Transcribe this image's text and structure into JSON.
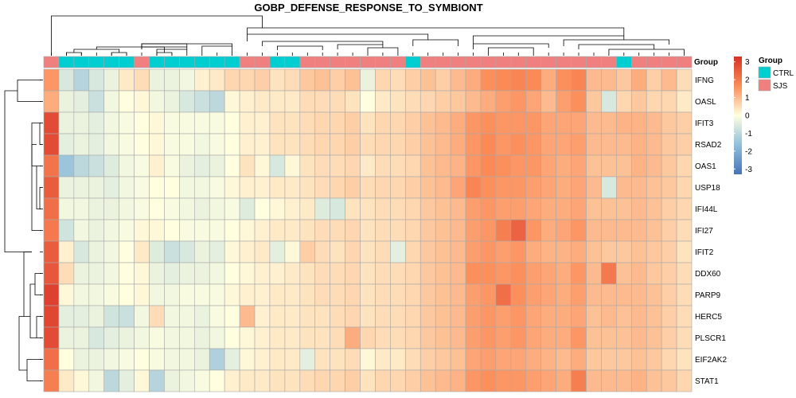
{
  "chart_data": {
    "type": "heatmap",
    "title": "GOBP_DEFENSE_RESPONSE_TO_SYMBIONT",
    "rows": [
      "IFNG",
      "OASL",
      "IFIT3",
      "RSAD2",
      "OAS1",
      "USP18",
      "IFI44L",
      "IFI27",
      "IFIT2",
      "DDX60",
      "PARP9",
      "HERC5",
      "PLSCR1",
      "EIF2AK2",
      "STAT1"
    ],
    "color_scale": {
      "ticks": [
        3,
        2,
        1,
        0,
        -1,
        -2,
        -3
      ],
      "range": [
        -3.3,
        3.3
      ],
      "low": "#4575B4",
      "mid": "#FFFFE0",
      "high": "#D73027"
    },
    "annotation": {
      "name": "Group",
      "legend_title": "Group",
      "levels": [
        {
          "label": "CTRL",
          "color": "#00CED1"
        },
        {
          "label": "SJS",
          "color": "#F08080"
        }
      ],
      "columns": [
        "SJS",
        "CTRL",
        "CTRL",
        "CTRL",
        "CTRL",
        "CTRL",
        "SJS",
        "CTRL",
        "CTRL",
        "CTRL",
        "CTRL",
        "CTRL",
        "CTRL",
        "SJS",
        "SJS",
        "CTRL",
        "CTRL",
        "SJS",
        "SJS",
        "SJS",
        "SJS",
        "SJS",
        "SJS",
        "SJS",
        "CTRL",
        "SJS",
        "SJS",
        "SJS",
        "SJS",
        "SJS",
        "SJS",
        "SJS",
        "SJS",
        "SJS",
        "SJS",
        "SJS",
        "SJS",
        "SJS",
        "CTRL",
        "SJS",
        "SJS",
        "SJS",
        "SJS"
      ]
    },
    "values": [
      [
        1.5,
        -0.6,
        -1.1,
        -0.6,
        -0.3,
        0.3,
        0.5,
        -0.3,
        -0.3,
        -0.2,
        0.2,
        0.3,
        0.6,
        0.6,
        0.7,
        0.4,
        0.5,
        0.8,
        0.9,
        0.7,
        0.9,
        -0.3,
        0.6,
        0.5,
        0.7,
        0.9,
        0.7,
        1.0,
        1.2,
        1.6,
        1.7,
        1.8,
        1.7,
        1.2,
        1.6,
        1.8,
        1.0,
        1.0,
        0.8,
        1.2,
        0.7,
        1.0,
        0.5
      ],
      [
        1.2,
        -0.3,
        -0.4,
        -0.8,
        -0.2,
        0.0,
        0.1,
        -0.2,
        -0.3,
        -0.6,
        -0.8,
        -1.0,
        0.1,
        0.2,
        0.3,
        0.3,
        0.3,
        0.5,
        0.5,
        0.5,
        0.4,
        0.0,
        0.3,
        0.4,
        0.5,
        0.6,
        0.7,
        0.8,
        1.0,
        1.2,
        1.4,
        1.5,
        1.3,
        1.0,
        1.4,
        1.6,
        0.8,
        -0.6,
        0.6,
        0.8,
        0.6,
        0.6,
        0.3
      ],
      [
        2.8,
        -0.3,
        -0.3,
        -0.4,
        -0.2,
        -0.1,
        0.0,
        0.1,
        -0.1,
        -0.1,
        -0.1,
        -0.1,
        0.0,
        0.2,
        0.2,
        0.4,
        0.4,
        0.5,
        0.6,
        0.6,
        0.7,
        0.4,
        0.6,
        0.6,
        0.7,
        0.9,
        1.0,
        1.2,
        1.5,
        1.6,
        1.5,
        1.5,
        1.5,
        1.3,
        1.3,
        1.3,
        1.0,
        1.0,
        1.1,
        1.1,
        1.0,
        0.8,
        0.7
      ],
      [
        2.8,
        -0.4,
        -0.3,
        -0.4,
        -0.2,
        -0.1,
        0.0,
        0.1,
        -0.1,
        -0.1,
        -0.2,
        -0.1,
        0.0,
        0.2,
        0.2,
        0.4,
        0.4,
        0.5,
        0.6,
        0.6,
        0.7,
        0.5,
        0.6,
        0.6,
        0.7,
        0.9,
        1.0,
        1.2,
        1.5,
        1.7,
        1.5,
        1.6,
        1.5,
        1.3,
        1.3,
        1.4,
        1.0,
        1.0,
        1.0,
        1.1,
        1.0,
        0.8,
        0.7
      ],
      [
        2.1,
        -1.5,
        -1.0,
        -0.8,
        -0.5,
        -0.2,
        -0.1,
        0.2,
        -0.1,
        -0.3,
        -0.4,
        -0.3,
        0.0,
        0.4,
        0.1,
        -0.6,
        0.1,
        0.4,
        0.5,
        0.5,
        0.6,
        0.3,
        0.5,
        0.5,
        0.6,
        0.9,
        1.0,
        1.1,
        1.5,
        1.7,
        1.6,
        1.5,
        1.5,
        1.3,
        1.2,
        1.3,
        0.9,
        0.9,
        0.9,
        1.1,
        1.0,
        0.8,
        0.6
      ],
      [
        2.5,
        -0.3,
        -0.3,
        -0.3,
        -0.4,
        -0.2,
        -0.1,
        0.0,
        0.0,
        -0.2,
        -0.2,
        -0.1,
        0.1,
        0.2,
        0.2,
        0.3,
        0.3,
        0.4,
        0.5,
        0.6,
        0.7,
        0.5,
        0.6,
        0.6,
        0.7,
        0.9,
        1.0,
        1.3,
        1.8,
        1.6,
        1.5,
        1.5,
        1.4,
        1.3,
        1.2,
        1.3,
        1.0,
        -0.6,
        1.0,
        1.0,
        0.9,
        0.8,
        0.6
      ],
      [
        2.2,
        -0.2,
        -0.2,
        -0.3,
        -0.3,
        -0.2,
        -0.1,
        0.0,
        -0.1,
        -0.2,
        -0.3,
        -0.2,
        -0.1,
        -0.5,
        0.0,
        0.1,
        0.2,
        0.3,
        -0.5,
        -0.6,
        0.4,
        0.4,
        0.5,
        0.5,
        0.6,
        0.8,
        0.9,
        1.0,
        1.4,
        1.5,
        1.4,
        1.4,
        1.3,
        1.2,
        1.2,
        1.3,
        0.9,
        0.9,
        0.9,
        1.0,
        0.9,
        0.7,
        0.6
      ],
      [
        2.0,
        -0.7,
        -0.2,
        -0.3,
        -0.2,
        -0.1,
        0.1,
        0.1,
        0.0,
        -0.1,
        -0.1,
        -0.1,
        0.0,
        0.1,
        0.2,
        0.3,
        0.3,
        0.4,
        0.5,
        0.5,
        0.6,
        0.4,
        0.5,
        0.5,
        0.6,
        0.8,
        0.9,
        1.0,
        1.4,
        1.5,
        1.9,
        2.4,
        1.5,
        1.2,
        1.3,
        1.5,
        1.0,
        1.0,
        1.0,
        1.0,
        0.9,
        0.7,
        0.5
      ],
      [
        2.5,
        0.2,
        -0.6,
        -0.3,
        -0.2,
        0.0,
        0.3,
        -0.5,
        -0.8,
        -0.6,
        -0.3,
        -0.4,
        0.1,
        0.2,
        0.3,
        -0.4,
        0.1,
        0.7,
        0.5,
        0.4,
        0.6,
        0.4,
        0.5,
        -0.4,
        0.6,
        0.8,
        0.9,
        1.0,
        1.4,
        1.5,
        1.4,
        1.5,
        1.2,
        1.1,
        1.1,
        1.2,
        0.9,
        0.8,
        0.8,
        0.9,
        0.8,
        0.7,
        0.4
      ],
      [
        2.6,
        0.5,
        -0.3,
        -0.3,
        -0.2,
        0.0,
        0.1,
        -0.3,
        -0.4,
        -0.3,
        -0.3,
        -0.2,
        0.0,
        0.1,
        0.2,
        0.2,
        0.3,
        0.4,
        0.5,
        0.5,
        0.6,
        0.4,
        0.5,
        0.5,
        0.6,
        0.8,
        0.9,
        1.0,
        1.6,
        1.6,
        1.5,
        1.6,
        1.4,
        1.3,
        1.2,
        1.5,
        1.0,
        2.0,
        0.9,
        1.0,
        0.8,
        0.7,
        0.5
      ],
      [
        3.0,
        0.1,
        -0.2,
        -0.2,
        -0.1,
        0.0,
        0.1,
        -0.2,
        -0.2,
        -0.1,
        -0.1,
        -0.1,
        0.1,
        0.2,
        0.2,
        0.3,
        0.3,
        0.4,
        0.5,
        0.5,
        0.6,
        0.4,
        0.5,
        0.5,
        0.6,
        0.8,
        0.9,
        1.0,
        1.4,
        1.5,
        2.2,
        1.6,
        1.4,
        1.3,
        1.2,
        1.4,
        1.0,
        1.0,
        1.0,
        1.0,
        0.9,
        0.7,
        0.5
      ],
      [
        2.9,
        -0.4,
        -0.4,
        -0.3,
        -0.7,
        -0.8,
        -0.2,
        0.5,
        -0.2,
        -0.2,
        -0.3,
        -0.1,
        0.0,
        1.0,
        0.2,
        0.3,
        0.3,
        0.4,
        0.4,
        0.5,
        0.6,
        0.4,
        0.5,
        0.5,
        0.6,
        0.8,
        0.9,
        1.0,
        1.4,
        1.5,
        1.4,
        1.5,
        1.3,
        1.2,
        1.2,
        1.3,
        0.9,
        1.0,
        0.9,
        1.0,
        0.9,
        0.7,
        0.5
      ],
      [
        2.8,
        -0.3,
        -0.3,
        -0.6,
        -0.4,
        -0.3,
        -0.2,
        -0.1,
        -0.2,
        -0.2,
        -0.3,
        -0.2,
        0.0,
        0.1,
        0.2,
        0.3,
        0.3,
        0.4,
        0.4,
        0.5,
        1.2,
        0.6,
        0.5,
        0.5,
        0.6,
        0.8,
        0.9,
        1.0,
        1.4,
        1.5,
        1.4,
        1.5,
        1.3,
        1.2,
        1.2,
        1.5,
        0.9,
        0.9,
        0.9,
        1.0,
        0.9,
        0.7,
        0.5
      ],
      [
        2.2,
        0.0,
        -0.3,
        -0.3,
        -0.2,
        -0.1,
        0.0,
        -0.1,
        -0.2,
        -0.2,
        -0.3,
        -1.2,
        -0.4,
        0.1,
        0.2,
        0.3,
        0.3,
        -0.4,
        0.4,
        0.4,
        0.5,
        0.1,
        0.3,
        0.3,
        0.5,
        0.7,
        0.8,
        0.9,
        1.3,
        1.4,
        1.3,
        1.3,
        1.2,
        1.1,
        1.0,
        1.2,
        0.8,
        0.8,
        0.8,
        0.9,
        0.8,
        0.6,
        0.4
      ],
      [
        1.9,
        0.3,
        0.1,
        -0.2,
        -1.0,
        -0.4,
        0.1,
        -1.1,
        -0.3,
        -0.2,
        -0.1,
        0.0,
        0.2,
        0.3,
        0.3,
        0.4,
        0.4,
        0.5,
        0.6,
        0.6,
        0.7,
        0.4,
        0.6,
        0.6,
        0.7,
        0.9,
        1.0,
        1.1,
        1.5,
        1.6,
        1.5,
        1.5,
        1.4,
        1.3,
        1.2,
        1.9,
        1.0,
        1.0,
        1.0,
        1.1,
        0.9,
        0.8,
        0.6
      ]
    ]
  }
}
